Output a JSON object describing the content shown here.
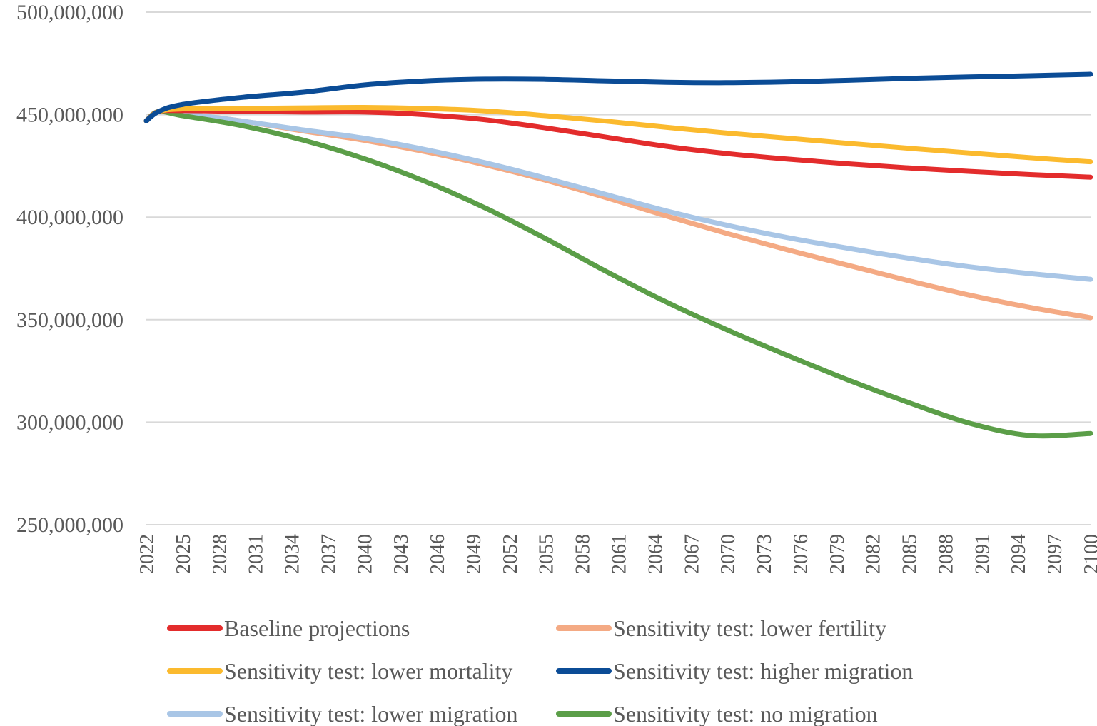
{
  "chart_data": {
    "type": "line",
    "title": "",
    "xlabel": "",
    "ylabel": "",
    "ylim": [
      250000000,
      500000000
    ],
    "xlim": [
      2022,
      2100
    ],
    "grid": true,
    "legend_position": "bottom",
    "y_ticks": [
      {
        "value": 250000000,
        "label": "250,000,000"
      },
      {
        "value": 300000000,
        "label": "300,000,000"
      },
      {
        "value": 350000000,
        "label": "350,000,000"
      },
      {
        "value": 400000000,
        "label": "400,000,000"
      },
      {
        "value": 450000000,
        "label": "450,000,000"
      },
      {
        "value": 500000000,
        "label": "500,000,000"
      }
    ],
    "x_ticks": [
      "2022",
      "2025",
      "2028",
      "2031",
      "2034",
      "2037",
      "2040",
      "2043",
      "2046",
      "2049",
      "2052",
      "2055",
      "2058",
      "2061",
      "2064",
      "2067",
      "2070",
      "2073",
      "2076",
      "2079",
      "2082",
      "2085",
      "2088",
      "2091",
      "2094",
      "2097",
      "2100"
    ],
    "series": [
      {
        "name": "Baseline projections",
        "color": "#E32C2C",
        "points": [
          [
            2022,
            447000000
          ],
          [
            2023,
            451500000
          ],
          [
            2025,
            452000000
          ],
          [
            2030,
            451600000
          ],
          [
            2035,
            451300000
          ],
          [
            2040,
            451300000
          ],
          [
            2045,
            450000000
          ],
          [
            2050,
            447500000
          ],
          [
            2055,
            443500000
          ],
          [
            2060,
            439000000
          ],
          [
            2065,
            434500000
          ],
          [
            2070,
            431000000
          ],
          [
            2075,
            428300000
          ],
          [
            2080,
            426000000
          ],
          [
            2085,
            424000000
          ],
          [
            2090,
            422300000
          ],
          [
            2095,
            420800000
          ],
          [
            2100,
            419500000
          ]
        ]
      },
      {
        "name": "Sensitivity test: lower fertility",
        "color": "#F4AA84",
        "points": [
          [
            2022,
            447000000
          ],
          [
            2023,
            451500000
          ],
          [
            2025,
            450500000
          ],
          [
            2030,
            446800000
          ],
          [
            2035,
            442000000
          ],
          [
            2040,
            437500000
          ],
          [
            2045,
            432000000
          ],
          [
            2050,
            425500000
          ],
          [
            2055,
            418000000
          ],
          [
            2060,
            409500000
          ],
          [
            2065,
            400500000
          ],
          [
            2070,
            392000000
          ],
          [
            2075,
            384000000
          ],
          [
            2080,
            376500000
          ],
          [
            2085,
            369000000
          ],
          [
            2090,
            362000000
          ],
          [
            2095,
            356000000
          ],
          [
            2100,
            351000000
          ]
        ]
      },
      {
        "name": "Sensitivity test: lower mortality",
        "color": "#FBBA2E",
        "points": [
          [
            2022,
            447000000
          ],
          [
            2023,
            451500000
          ],
          [
            2025,
            452800000
          ],
          [
            2030,
            453000000
          ],
          [
            2035,
            453300000
          ],
          [
            2040,
            453500000
          ],
          [
            2045,
            453000000
          ],
          [
            2050,
            451800000
          ],
          [
            2055,
            449500000
          ],
          [
            2060,
            446800000
          ],
          [
            2065,
            443800000
          ],
          [
            2070,
            441000000
          ],
          [
            2075,
            438500000
          ],
          [
            2080,
            436000000
          ],
          [
            2085,
            433600000
          ],
          [
            2090,
            431300000
          ],
          [
            2095,
            429000000
          ],
          [
            2100,
            427000000
          ]
        ]
      },
      {
        "name": "Sensitivity test: higher migration",
        "color": "#0B4C96",
        "points": [
          [
            2022,
            447000000
          ],
          [
            2023,
            451500000
          ],
          [
            2025,
            455000000
          ],
          [
            2030,
            458500000
          ],
          [
            2035,
            461000000
          ],
          [
            2040,
            464500000
          ],
          [
            2045,
            466500000
          ],
          [
            2050,
            467300000
          ],
          [
            2055,
            467200000
          ],
          [
            2060,
            466500000
          ],
          [
            2065,
            465800000
          ],
          [
            2070,
            465600000
          ],
          [
            2075,
            466000000
          ],
          [
            2080,
            466800000
          ],
          [
            2085,
            467700000
          ],
          [
            2090,
            468400000
          ],
          [
            2095,
            469000000
          ],
          [
            2100,
            469700000
          ]
        ]
      },
      {
        "name": "Sensitivity test: lower migration",
        "color": "#A9C6E6",
        "points": [
          [
            2022,
            447000000
          ],
          [
            2023,
            451500000
          ],
          [
            2025,
            450500000
          ],
          [
            2030,
            446800000
          ],
          [
            2035,
            442500000
          ],
          [
            2040,
            438500000
          ],
          [
            2045,
            433000000
          ],
          [
            2050,
            426500000
          ],
          [
            2055,
            419000000
          ],
          [
            2060,
            411000000
          ],
          [
            2065,
            403000000
          ],
          [
            2070,
            396000000
          ],
          [
            2075,
            390000000
          ],
          [
            2080,
            384800000
          ],
          [
            2085,
            380000000
          ],
          [
            2090,
            375800000
          ],
          [
            2095,
            372500000
          ],
          [
            2100,
            369700000
          ]
        ]
      },
      {
        "name": "Sensitivity test: no migration",
        "color": "#5B9E48",
        "points": [
          [
            2022,
            447000000
          ],
          [
            2023,
            451500000
          ],
          [
            2025,
            449500000
          ],
          [
            2030,
            444500000
          ],
          [
            2035,
            437500000
          ],
          [
            2040,
            428500000
          ],
          [
            2045,
            417500000
          ],
          [
            2050,
            404500000
          ],
          [
            2055,
            389500000
          ],
          [
            2060,
            373500000
          ],
          [
            2065,
            358500000
          ],
          [
            2070,
            345000000
          ],
          [
            2075,
            332500000
          ],
          [
            2080,
            320500000
          ],
          [
            2085,
            309500000
          ],
          [
            2090,
            299500000
          ],
          [
            2095,
            293500000
          ],
          [
            2100,
            294500000
          ]
        ]
      }
    ]
  }
}
